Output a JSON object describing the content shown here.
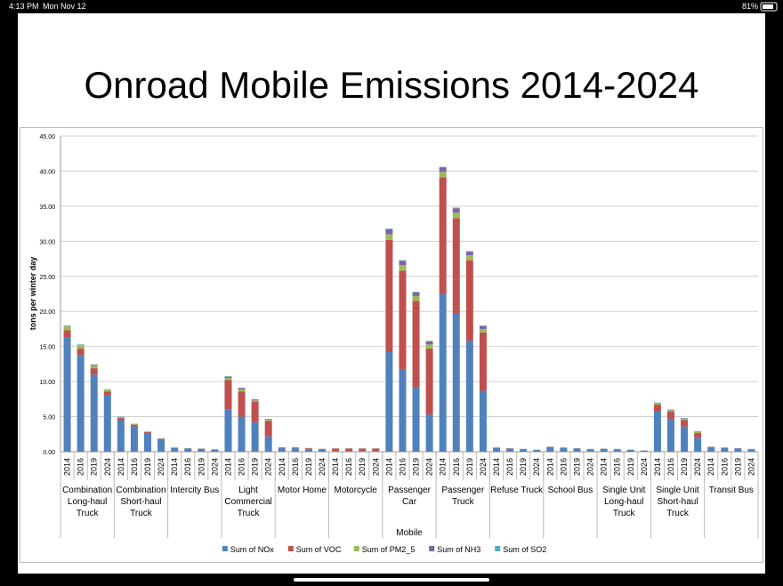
{
  "status_bar": {
    "time": "4:13 PM",
    "date": "Mon Nov 12",
    "battery": "81%"
  },
  "chart_data": {
    "type": "bar",
    "stacked": true,
    "title": "Onroad Mobile Emissions 2014-2024",
    "y_label": "tons per winter day",
    "x_label": "Mobile",
    "groups": [
      "Combination Long-haul Truck",
      "Combination Short-haul Truck",
      "Intercity Bus",
      "Light Commercial Truck",
      "Motor Home",
      "Motorcycle",
      "Passenger Car",
      "Passenger Truck",
      "Refuse Truck",
      "School Bus",
      "Single Unit Long-haul Truck",
      "Single Unit Short-haul Truck",
      "Transit Bus"
    ],
    "categories": [
      "2014",
      "2016",
      "2019",
      "2024",
      "2014",
      "2016",
      "2019",
      "2024",
      "2014",
      "2016",
      "2019",
      "2024",
      "2014",
      "2016",
      "2019",
      "2024",
      "2014",
      "2016",
      "2019",
      "2024",
      "2014",
      "2016",
      "2019",
      "2024",
      "2014",
      "2016",
      "2019",
      "2024",
      "2014",
      "2016",
      "2019",
      "2024",
      "2014",
      "2016",
      "2019",
      "2024",
      "2014",
      "2016",
      "2019",
      "2024",
      "2014",
      "2016",
      "2019",
      "2024",
      "2014",
      "2016",
      "2019",
      "2024",
      "2014",
      "2016",
      "2019",
      "2024"
    ],
    "series": [
      {
        "name": "Sum of NOx",
        "color": "#4f81bd",
        "values": [
          16.3,
          13.8,
          11.0,
          8.0,
          4.5,
          3.6,
          2.6,
          1.7,
          0.55,
          0.45,
          0.4,
          0.3,
          6.0,
          5.0,
          4.2,
          2.2,
          0.5,
          0.5,
          0.4,
          0.35,
          0.1,
          0.1,
          0.1,
          0.1,
          14.2,
          11.8,
          9.2,
          5.3,
          22.5,
          19.7,
          15.8,
          8.7,
          0.55,
          0.45,
          0.35,
          0.25,
          0.65,
          0.55,
          0.45,
          0.35,
          0.4,
          0.35,
          0.25,
          0.15,
          5.7,
          4.7,
          3.6,
          2.0,
          0.65,
          0.55,
          0.45,
          0.35
        ]
      },
      {
        "name": "Sum of VOC",
        "color": "#c0504d",
        "values": [
          1.0,
          0.9,
          0.9,
          0.6,
          0.3,
          0.25,
          0.2,
          0.15,
          0.03,
          0.03,
          0.03,
          0.02,
          4.2,
          3.6,
          2.9,
          2.2,
          0.1,
          0.1,
          0.1,
          0.05,
          0.35,
          0.35,
          0.35,
          0.35,
          16.0,
          14.0,
          12.3,
          9.4,
          16.6,
          13.6,
          11.5,
          8.3,
          0.03,
          0.03,
          0.03,
          0.02,
          0.04,
          0.04,
          0.03,
          0.03,
          0.02,
          0.02,
          0.02,
          0.02,
          1.0,
          1.0,
          0.9,
          0.7,
          0.03,
          0.03,
          0.03,
          0.02
        ]
      },
      {
        "name": "Sum of PM2_5",
        "color": "#9bbb59",
        "values": [
          0.6,
          0.5,
          0.4,
          0.2,
          0.15,
          0.1,
          0.07,
          0.04,
          0.02,
          0.02,
          0.01,
          0.01,
          0.3,
          0.3,
          0.2,
          0.15,
          0.02,
          0.02,
          0.02,
          0.01,
          0.01,
          0.01,
          0.01,
          0.01,
          0.8,
          0.8,
          0.7,
          0.6,
          0.8,
          0.8,
          0.7,
          0.5,
          0.02,
          0.02,
          0.01,
          0.01,
          0.02,
          0.02,
          0.01,
          0.01,
          0.01,
          0.01,
          0.01,
          0.01,
          0.2,
          0.2,
          0.2,
          0.1,
          0.02,
          0.02,
          0.01,
          0.01
        ]
      },
      {
        "name": "Sum of NH3",
        "color": "#8064a2",
        "values": [
          0.05,
          0.05,
          0.1,
          0.05,
          0.03,
          0.03,
          0.02,
          0.01,
          0.01,
          0.01,
          0.01,
          0.01,
          0.2,
          0.2,
          0.15,
          0.1,
          0.01,
          0.01,
          0.01,
          0.01,
          0.01,
          0.01,
          0.01,
          0.01,
          0.7,
          0.6,
          0.5,
          0.45,
          0.6,
          0.6,
          0.5,
          0.4,
          0.01,
          0.01,
          0.01,
          0.01,
          0.01,
          0.01,
          0.01,
          0.01,
          0.01,
          0.01,
          0.01,
          0.01,
          0.05,
          0.05,
          0.05,
          0.05,
          0.01,
          0.01,
          0.01,
          0.01
        ]
      },
      {
        "name": "Sum of SO2",
        "color": "#4bacc6",
        "values": [
          0.05,
          0.05,
          0.05,
          0.05,
          0.02,
          0.02,
          0.01,
          0.01,
          0.01,
          0.01,
          0.01,
          0.01,
          0.05,
          0.03,
          0.03,
          0.02,
          0.01,
          0.01,
          0.01,
          0.01,
          0.01,
          0.01,
          0.01,
          0.01,
          0.1,
          0.1,
          0.1,
          0.05,
          0.1,
          0.1,
          0.1,
          0.1,
          0.01,
          0.01,
          0.01,
          0.01,
          0.01,
          0.01,
          0.01,
          0.01,
          0.01,
          0.01,
          0.01,
          0.01,
          0.05,
          0.05,
          0.05,
          0.05,
          0.01,
          0.01,
          0.01,
          0.01
        ]
      }
    ],
    "ylim": [
      0,
      45
    ],
    "yticks": [
      {
        "value": 0,
        "label": "0.00"
      },
      {
        "value": 5,
        "label": "5.00"
      },
      {
        "value": 10,
        "label": "10.00"
      },
      {
        "value": 15,
        "label": "15.00"
      },
      {
        "value": 20,
        "label": "20.00"
      },
      {
        "value": 25,
        "label": "25.00"
      },
      {
        "value": 30,
        "label": "30.00"
      },
      {
        "value": 35,
        "label": "35.00"
      },
      {
        "value": 40,
        "label": "40.00"
      },
      {
        "value": 45,
        "label": "45.00"
      }
    ],
    "grid": true,
    "legend": "bottom"
  }
}
